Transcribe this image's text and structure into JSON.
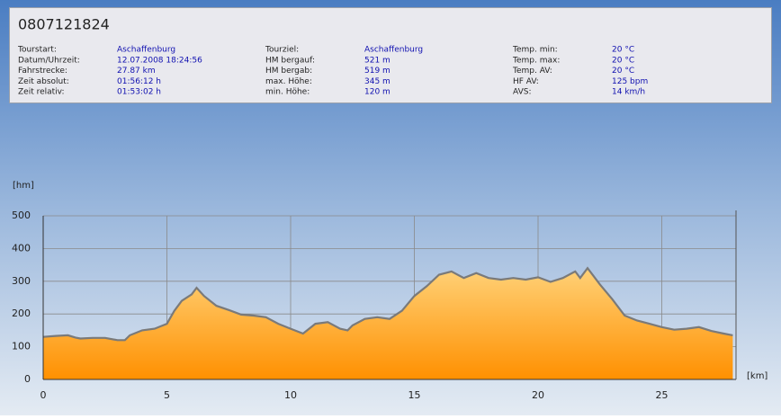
{
  "header": {
    "title": "0807121824",
    "columns": [
      [
        {
          "label": "Tourstart:",
          "value": "Aschaffenburg"
        },
        {
          "label": "Datum/Uhrzeit:",
          "value": "12.07.2008 18:24:56"
        },
        {
          "label": "Fahrstrecke:",
          "value": "27.87 km"
        },
        {
          "label": "Zeit absolut:",
          "value": "01:56:12 h"
        },
        {
          "label": "Zeit relativ:",
          "value": "01:53:02 h"
        }
      ],
      [
        {
          "label": "Tourziel:",
          "value": "Aschaffenburg"
        },
        {
          "label": "HM bergauf:",
          "value": "521 m"
        },
        {
          "label": "HM bergab:",
          "value": "519 m"
        },
        {
          "label": "max. Höhe:",
          "value": "345 m"
        },
        {
          "label": "min. Höhe:",
          "value": "120 m"
        }
      ],
      [
        {
          "label": "Temp. min:",
          "value": "20 °C"
        },
        {
          "label": "Temp. max:",
          "value": "20 °C"
        },
        {
          "label": "Temp. AV:",
          "value": "20 °C"
        },
        {
          "label": "HF AV:",
          "value": "125 bpm"
        },
        {
          "label": "AVS:",
          "value": "14 km/h"
        }
      ]
    ]
  },
  "chart_data": {
    "type": "area",
    "y_label": "[hm]",
    "x_label": "[km]",
    "x": [
      0,
      0.5,
      1,
      1.3,
      1.5,
      2,
      2.5,
      3,
      3.3,
      3.5,
      4,
      4.5,
      5,
      5.3,
      5.6,
      6,
      6.2,
      6.5,
      7,
      7.5,
      8,
      8.5,
      9,
      9.5,
      10,
      10.5,
      11,
      11.5,
      12,
      12.3,
      12.5,
      13,
      13.5,
      14,
      14.3,
      14.5,
      15,
      15.5,
      16,
      16.5,
      17,
      17.5,
      18,
      18.5,
      19,
      19.5,
      20,
      20.5,
      21,
      21.5,
      21.7,
      22,
      22.5,
      23,
      23.5,
      24,
      24.5,
      25,
      25.5,
      26,
      26.5,
      27,
      27.5,
      27.87
    ],
    "values": [
      130,
      133,
      135,
      128,
      125,
      127,
      127,
      120,
      120,
      135,
      150,
      155,
      170,
      210,
      240,
      260,
      280,
      255,
      225,
      212,
      198,
      195,
      190,
      170,
      155,
      140,
      170,
      175,
      155,
      150,
      165,
      185,
      190,
      185,
      200,
      210,
      255,
      285,
      320,
      330,
      310,
      325,
      310,
      305,
      310,
      305,
      312,
      298,
      310,
      330,
      310,
      340,
      290,
      245,
      195,
      180,
      170,
      160,
      152,
      155,
      160,
      148,
      140,
      135
    ],
    "xlim": [
      0,
      28
    ],
    "ylim": [
      0,
      500
    ],
    "xticks": [
      0,
      5,
      10,
      15,
      20,
      25
    ],
    "yticks": [
      0,
      100,
      200,
      300,
      400,
      500
    ],
    "grid": true,
    "line_color": "#7a7a7a",
    "fill_top": "#fff0b0",
    "fill_bottom": "#ff9000"
  }
}
